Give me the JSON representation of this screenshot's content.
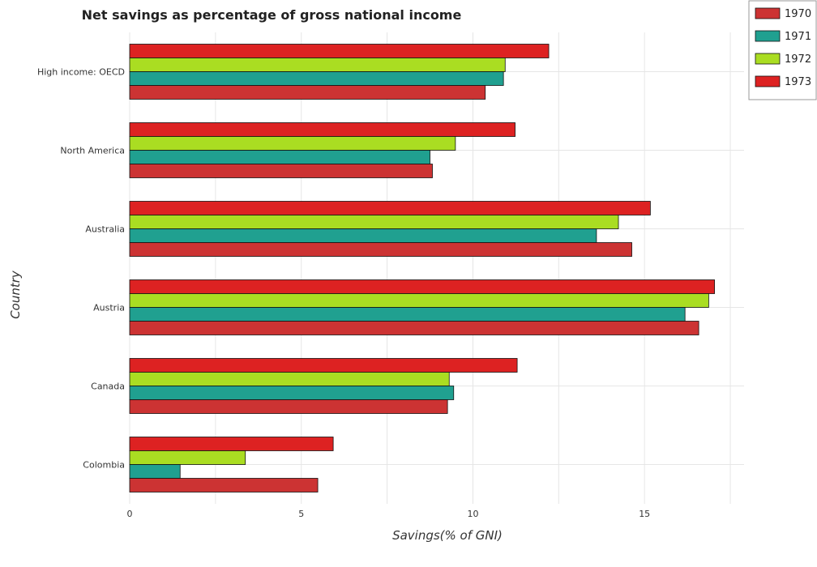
{
  "chart_data": {
    "type": "bar",
    "orientation": "horizontal",
    "title": "Net savings as percentage of gross national income",
    "xlabel": "Savings(% of GNI)",
    "ylabel": "Country",
    "xlim": [
      0,
      17.9
    ],
    "xticks": [
      0,
      5,
      10,
      15
    ],
    "xtick_labels": [
      "0",
      "5",
      "10",
      "15"
    ],
    "grid": true,
    "legend_position": "top-right",
    "categories": [
      "High income: OECD",
      "North America",
      "Australia",
      "Austria",
      "Canada",
      "Colombia"
    ],
    "series": [
      {
        "name": "1970",
        "color": "#cc3333",
        "values": [
          10.36,
          8.82,
          14.63,
          16.58,
          9.26,
          5.48
        ]
      },
      {
        "name": "1971",
        "color": "#20a090",
        "values": [
          10.89,
          8.75,
          13.6,
          16.18,
          9.44,
          1.47
        ]
      },
      {
        "name": "1972",
        "color": "#aadd22",
        "values": [
          10.94,
          9.49,
          14.24,
          16.87,
          9.31,
          3.37
        ]
      },
      {
        "name": "1973",
        "color": "#dd2222",
        "values": [
          12.21,
          11.23,
          15.17,
          17.04,
          11.29,
          5.93
        ]
      }
    ]
  }
}
